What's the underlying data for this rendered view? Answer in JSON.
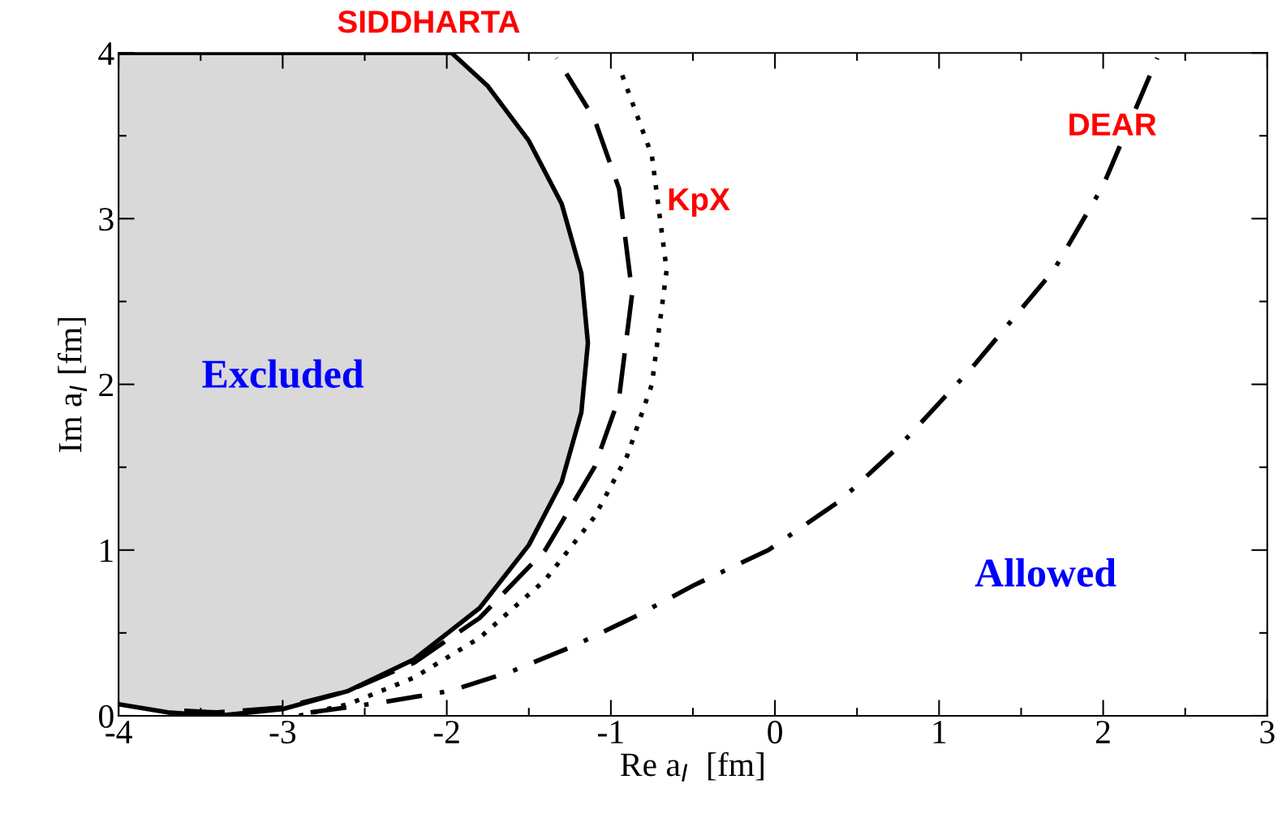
{
  "chart_data": {
    "type": "line",
    "xlabel": "Re a$_{I}$  [fm]",
    "ylabel": "Im a$_{I}$ [fm]",
    "xlim": [
      -4,
      3
    ],
    "ylim": [
      0,
      4
    ],
    "xticks": [
      -4,
      -3,
      -2,
      -1,
      0,
      1,
      2,
      3
    ],
    "yticks": [
      0,
      1,
      2,
      3,
      4
    ],
    "grid": false,
    "legend": false,
    "marker": "none",
    "series": [
      {
        "type": "area",
        "color": "#000000",
        "line_style": "solid",
        "x": [
          -4,
          -3.7,
          -3.4,
          -3.0,
          -2.6,
          -2.2,
          -1.8,
          -1.5,
          -1.3,
          -1.18,
          -1.14,
          -1.18,
          -1.3,
          -1.5,
          -1.75,
          -1.97,
          -4
        ],
        "values": [
          0.07,
          0.02,
          0,
          0.04,
          0.15,
          0.34,
          0.65,
          1.03,
          1.41,
          1.83,
          2.25,
          2.67,
          3.09,
          3.47,
          3.8,
          4.0,
          4.0
        ]
      },
      {
        "color": "#000000",
        "line_style": "dashed",
        "x": [
          -3.6,
          -3.4,
          -3.0,
          -2.6,
          -2.2,
          -1.8,
          -1.4,
          -1.1,
          -0.95,
          -0.87,
          -0.95,
          -1.1,
          -1.33
        ],
        "values": [
          0.03,
          0.02,
          0.05,
          0.15,
          0.32,
          0.59,
          1.0,
          1.5,
          1.92,
          2.55,
          3.18,
          3.6,
          3.97
        ]
      },
      {
        "color": "#000000",
        "line_style": "dotted",
        "x": [
          -2.9,
          -2.6,
          -2.2,
          -1.8,
          -1.4,
          -1.1,
          -0.9,
          -0.75,
          -0.66,
          -0.75,
          -0.94
        ],
        "values": [
          0.0,
          0.07,
          0.23,
          0.47,
          0.82,
          1.2,
          1.57,
          2.0,
          2.69,
          3.38,
          3.89
        ]
      },
      {
        "color": "#000000",
        "line_style": "dashdot",
        "x": [
          -2.83,
          -2.4,
          -1.98,
          -1.6,
          -1.23,
          -0.85,
          -0.49,
          -0.04,
          0.4,
          0.76,
          1.2,
          1.7,
          2.0,
          2.33
        ],
        "values": [
          0.02,
          0.08,
          0.15,
          0.27,
          0.42,
          0.6,
          0.79,
          1.0,
          1.3,
          1.63,
          2.1,
          2.69,
          3.2,
          3.97
        ]
      }
    ],
    "annotations": [
      "Excluded",
      "Allowed",
      "SIDDHARTA",
      "KpX",
      "DEAR"
    ]
  }
}
